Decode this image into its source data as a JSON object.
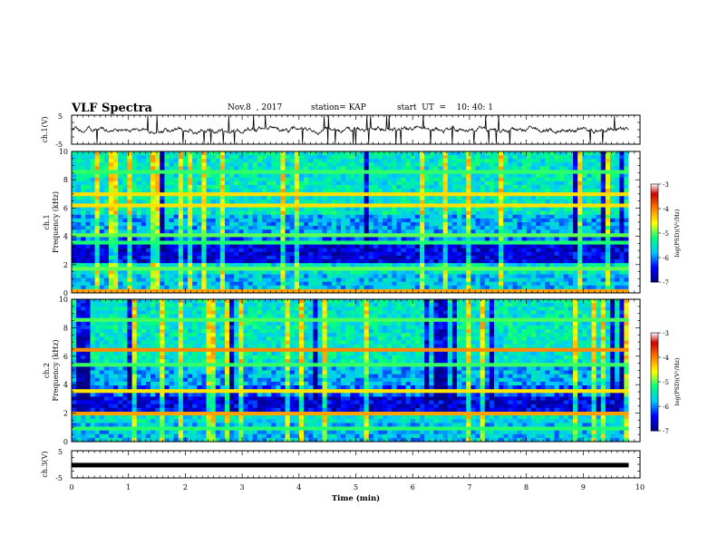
{
  "header": {
    "title": "VLF Spectra",
    "date": "Nov.8  , 2017",
    "station": "station= KAP",
    "start": "start  UT  =    10: 40: 1"
  },
  "chart_data": {
    "type": "heatmap",
    "xlabel": "Time  (min)",
    "xlim": [
      0,
      10
    ],
    "xticks": [
      "0",
      "1",
      "2",
      "3",
      "4",
      "5",
      "6",
      "7",
      "8",
      "9",
      "10"
    ],
    "panels": [
      {
        "id": "ch1-waveform",
        "type": "line",
        "ylabel": "ch.1(V)",
        "ylim": [
          -5,
          5
        ],
        "yticks": [
          "-5",
          "5"
        ],
        "data_xmax_min": 9.8
      },
      {
        "id": "ch1-spectrogram",
        "type": "heatmap",
        "ylabel": "ch.1\nFrequency  (kHz)",
        "ylim": [
          0,
          10
        ],
        "yticks": [
          "0",
          "2",
          "4",
          "6",
          "8",
          "10"
        ],
        "data_xmax_min": 9.8,
        "colorbar": {
          "label": "log(PSD)(V²/Hz)",
          "range": [
            -7,
            -3
          ],
          "ticks": [
            "-7",
            "-6",
            "-5",
            "-4",
            "-3"
          ]
        }
      },
      {
        "id": "ch2-spectrogram",
        "type": "heatmap",
        "ylabel": "ch.2\nFrequency  (kHz)",
        "ylim": [
          0,
          10
        ],
        "yticks": [
          "0",
          "2",
          "4",
          "6",
          "8",
          "10"
        ],
        "data_xmax_min": 9.8,
        "colorbar": {
          "label": "log(PSD)(V²/Hz)",
          "range": [
            -7,
            -3
          ],
          "ticks": [
            "-7",
            "-6",
            "-5",
            "-4",
            "-3"
          ]
        }
      },
      {
        "id": "ch3-waveform",
        "type": "line",
        "ylabel": "ch.3(V)",
        "ylim": [
          -5,
          5
        ],
        "yticks": [
          "-5",
          "5"
        ],
        "data_xmax_min": 9.8
      }
    ]
  },
  "colors": {
    "colormap": [
      "#000080",
      "#0000ff",
      "#00c8ff",
      "#00ff80",
      "#ffff00",
      "#ff8000",
      "#cc0000",
      "#ffffff"
    ]
  }
}
